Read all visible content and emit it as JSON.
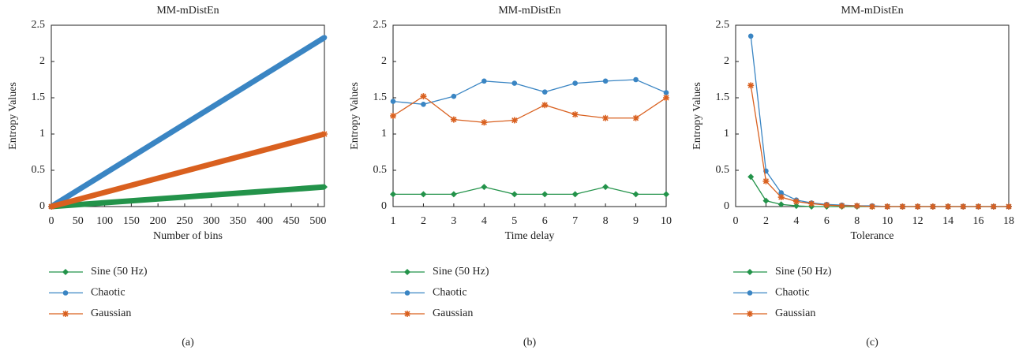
{
  "chart_data": [
    {
      "type": "line",
      "title": "MM-mDistEn",
      "caption": "(a)",
      "xlabel": "Number of bins",
      "ylabel": "Entropy Values",
      "x": [
        0,
        512
      ],
      "xlim": [
        0,
        512
      ],
      "xticks": [
        0,
        50,
        100,
        150,
        200,
        250,
        300,
        350,
        400,
        450,
        500
      ],
      "ylim": [
        0,
        2.5
      ],
      "yticks": [
        0,
        0.5,
        1,
        1.5,
        2,
        2.5
      ],
      "series": [
        {
          "name": "Sine (50 Hz)",
          "color": "#23934a",
          "marker": "diamond",
          "values": [
            0,
            0.27
          ]
        },
        {
          "name": "Chaotic",
          "color": "#3a85c3",
          "marker": "circle",
          "values": [
            0,
            2.33
          ]
        },
        {
          "name": "Gaussian",
          "color": "#d9601f",
          "marker": "star",
          "values": [
            0,
            1.0
          ]
        }
      ]
    },
    {
      "type": "line",
      "title": "MM-mDistEn",
      "caption": "(b)",
      "xlabel": "Time delay",
      "ylabel": "Entropy Values",
      "x": [
        1,
        2,
        3,
        4,
        5,
        6,
        7,
        8,
        9,
        10
      ],
      "xlim": [
        1,
        10
      ],
      "xticks": [
        1,
        2,
        3,
        4,
        5,
        6,
        7,
        8,
        9,
        10
      ],
      "ylim": [
        0,
        2.5
      ],
      "yticks": [
        0,
        0.5,
        1,
        1.5,
        2,
        2.5
      ],
      "series": [
        {
          "name": "Sine (50 Hz)",
          "color": "#23934a",
          "marker": "diamond",
          "values": [
            0.17,
            0.17,
            0.17,
            0.27,
            0.17,
            0.17,
            0.17,
            0.27,
            0.17,
            0.17
          ]
        },
        {
          "name": "Chaotic",
          "color": "#3a85c3",
          "marker": "circle",
          "values": [
            1.45,
            1.41,
            1.52,
            1.73,
            1.7,
            1.58,
            1.7,
            1.73,
            1.75,
            1.57
          ]
        },
        {
          "name": "Gaussian",
          "color": "#d9601f",
          "marker": "star",
          "values": [
            1.25,
            1.52,
            1.2,
            1.16,
            1.19,
            1.4,
            1.27,
            1.22,
            1.22,
            1.5
          ]
        }
      ]
    },
    {
      "type": "line",
      "title": "MM-mDistEn",
      "caption": "(c)",
      "xlabel": "Tolerance",
      "ylabel": "Entropy Values",
      "x": [
        1,
        2,
        3,
        4,
        5,
        6,
        7,
        8,
        9,
        10,
        11,
        12,
        13,
        14,
        15,
        16,
        17,
        18
      ],
      "xlim": [
        0,
        18
      ],
      "xticks": [
        0,
        2,
        4,
        6,
        8,
        10,
        12,
        14,
        16,
        18
      ],
      "ylim": [
        0,
        2.5
      ],
      "yticks": [
        0,
        0.5,
        1,
        1.5,
        2,
        2.5
      ],
      "series": [
        {
          "name": "Sine (50 Hz)",
          "color": "#23934a",
          "marker": "diamond",
          "values": [
            0.41,
            0.08,
            0.03,
            0.01,
            0,
            0,
            0,
            0,
            0,
            0,
            0,
            0,
            0,
            0,
            0,
            0,
            0,
            0
          ]
        },
        {
          "name": "Chaotic",
          "color": "#3a85c3",
          "marker": "circle",
          "values": [
            2.35,
            0.49,
            0.19,
            0.09,
            0.05,
            0.03,
            0.02,
            0.01,
            0.01,
            0,
            0,
            0,
            0,
            0,
            0,
            0,
            0,
            0
          ]
        },
        {
          "name": "Gaussian",
          "color": "#d9601f",
          "marker": "star",
          "values": [
            1.67,
            0.35,
            0.13,
            0.07,
            0.04,
            0.02,
            0.01,
            0.01,
            0,
            0,
            0,
            0,
            0,
            0,
            0,
            0,
            0,
            0
          ]
        }
      ]
    }
  ]
}
